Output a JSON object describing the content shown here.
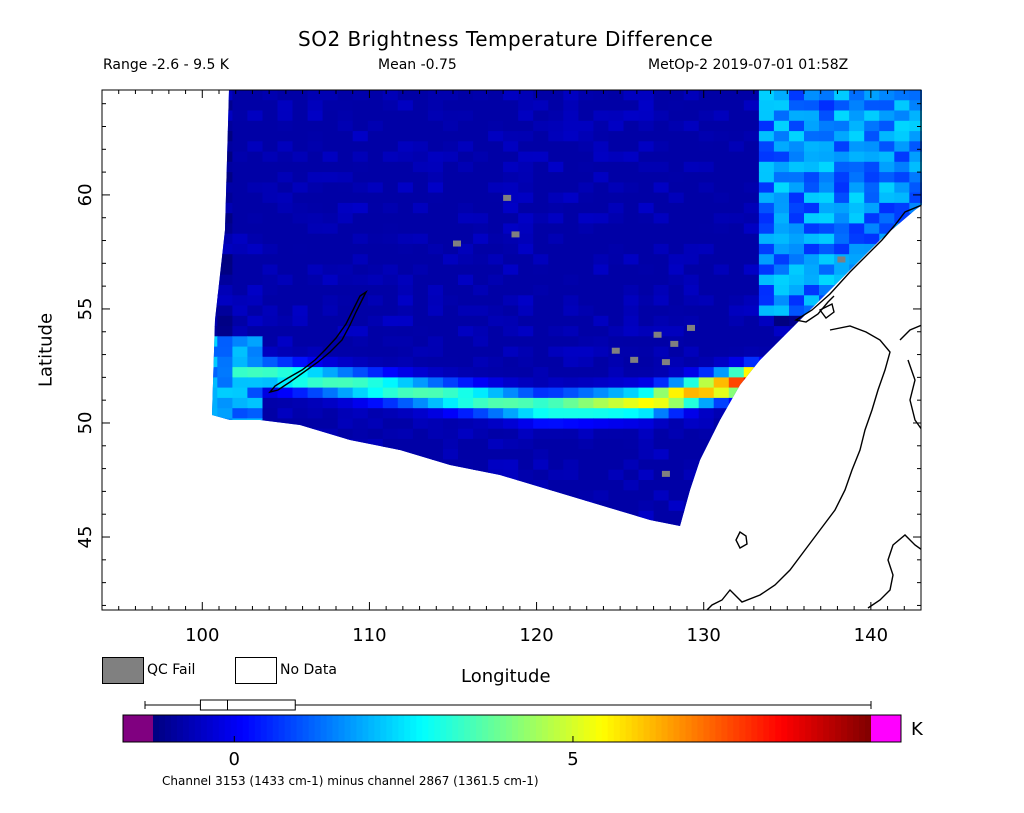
{
  "chart_data": {
    "type": "heatmap",
    "title": "SO2 Brightness Temperature Difference",
    "range_text": "Range -2.6 - 9.5 K",
    "mean_text": "Mean -0.75",
    "satellite_time": "MetOp-2 2019-07-01 01:58Z",
    "xlabel": "Longitude",
    "ylabel": "Latitude",
    "xlim": [
      94,
      143
    ],
    "ylim": [
      41.8,
      64.6
    ],
    "x_ticks": [
      "100",
      "110",
      "120",
      "130",
      "140"
    ],
    "x_tick_values": [
      100,
      110,
      120,
      130,
      140
    ],
    "y_ticks": [
      "45",
      "50",
      "55",
      "60"
    ],
    "y_tick_values": [
      45,
      50,
      55,
      60
    ],
    "legend": {
      "qc_fail": "QC Fail",
      "no_data": "No Data"
    },
    "colorbar": {
      "min": -1.2,
      "max": 9.4,
      "tick_labels": [
        "0",
        "5"
      ],
      "tick_values": [
        0,
        5
      ],
      "unit": "K",
      "below_color": "#800080",
      "above_color": "#ff00ff",
      "range_marker": [
        -0.5,
        0.9
      ],
      "mean_marker": -0.1
    },
    "footnote": "Channel 3153 (1433 cm-1) minus channel 2867 (1361.5 cm-1)",
    "qc_fail_color": "#808080",
    "plume_max": [
      {
        "lon": 132.5,
        "lat": 52.1,
        "value": 9.3
      },
      {
        "lon": 133.5,
        "lat": 52.0,
        "value": 8.5
      },
      {
        "lon": 131.0,
        "lat": 51.9,
        "value": 7.6
      },
      {
        "lon": 126.0,
        "lat": 51.1,
        "value": 6.2
      },
      {
        "lon": 120.0,
        "lat": 50.9,
        "value": 4.5
      },
      {
        "lon": 101.0,
        "lat": 52.6,
        "value": 4.2
      }
    ]
  }
}
